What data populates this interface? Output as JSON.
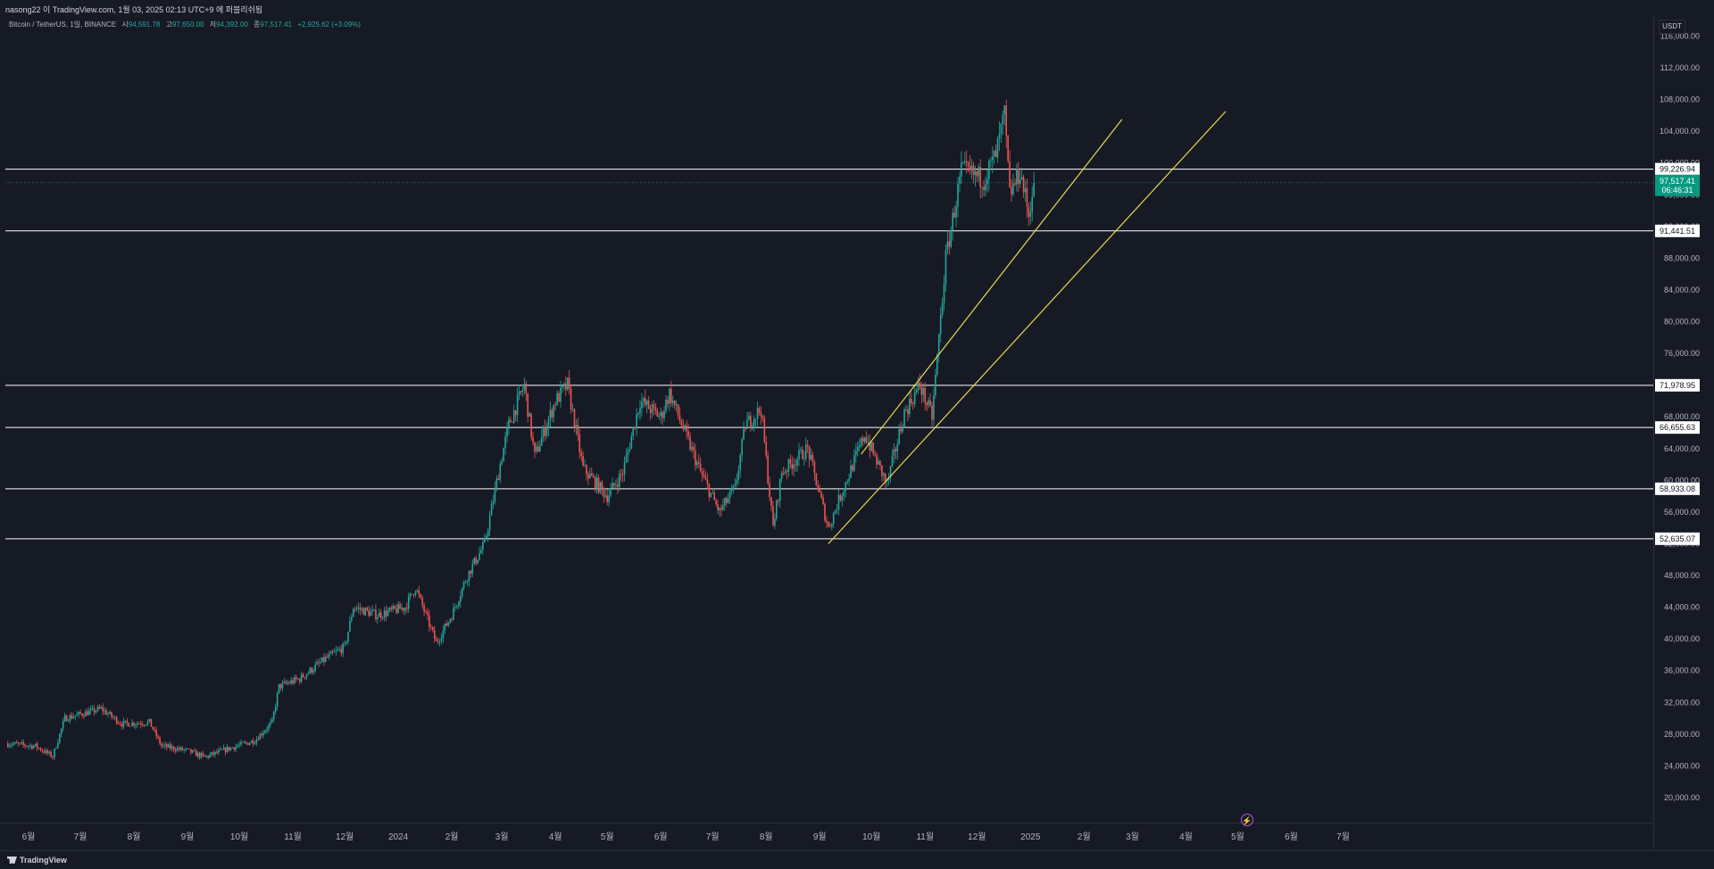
{
  "header": {
    "title": "nasong22 이 TradingView.com, 1월 03, 2025 02:13 UTC+9 에 퍼블리쉬됨"
  },
  "legend": {
    "symbol": "Bitcoin / TetherUS, 1일, BINANCE",
    "open_label": "시",
    "open": "94,591.78",
    "high_label": "고",
    "high": "97,650.00",
    "low_label": "저",
    "low": "94,392.00",
    "close_label": "종",
    "close": "97,517.41",
    "change": "+2,925.62 (+3.09%)"
  },
  "currency": "USDT",
  "footer": {
    "brand": "TradingView"
  },
  "colors": {
    "background": "#161a25",
    "up": "#26a69a",
    "down": "#ef5350",
    "trendline": "#e8d84a",
    "level": "#ffffff",
    "price_tag": "#089981"
  },
  "chart_data": {
    "type": "candlestick",
    "title": "Bitcoin / TetherUS, 1일, BINANCE",
    "y_unit": "USDT",
    "ylim": [
      18000,
      116000
    ],
    "x_ticks": [
      "6월",
      "7월",
      "8월",
      "9월",
      "10월",
      "11월",
      "12월",
      "2024",
      "2월",
      "3월",
      "4월",
      "5월",
      "6월",
      "7월",
      "8월",
      "9월",
      "10월",
      "11월",
      "12월",
      "2025",
      "2월",
      "3월",
      "4월",
      "5월",
      "6월",
      "7월"
    ],
    "x_tick_dates": [
      "2023-06-01",
      "2023-07-01",
      "2023-08-01",
      "2023-09-01",
      "2023-10-01",
      "2023-11-01",
      "2023-12-01",
      "2024-01-01",
      "2024-02-01",
      "2024-03-01",
      "2024-04-01",
      "2024-05-01",
      "2024-06-01",
      "2024-07-01",
      "2024-08-01",
      "2024-09-01",
      "2024-10-01",
      "2024-11-01",
      "2024-12-01",
      "2025-01-01",
      "2025-02-01",
      "2025-03-01",
      "2025-04-01",
      "2025-05-01",
      "2025-06-01",
      "2025-07-01"
    ],
    "y_ticks": [
      "116,000.00",
      "112,000.00",
      "108,000.00",
      "104,000.00",
      "100,000.00",
      "96,000.00",
      "92,000.00",
      "88,000.00",
      "84,000.00",
      "80,000.00",
      "76,000.00",
      "72,000.00",
      "68,000.00",
      "64,000.00",
      "60,000.00",
      "56,000.00",
      "52,000.00",
      "48,000.00",
      "44,000.00",
      "40,000.00",
      "36,000.00",
      "32,000.00",
      "28,000.00",
      "24,000.00",
      "20,000.00"
    ],
    "y_tick_values": [
      116000,
      112000,
      108000,
      104000,
      100000,
      96000,
      92000,
      88000,
      84000,
      80000,
      76000,
      72000,
      68000,
      64000,
      60000,
      56000,
      52000,
      48000,
      44000,
      40000,
      36000,
      32000,
      28000,
      24000,
      20000
    ],
    "price_path": [
      [
        "2023-05-20",
        26800
      ],
      [
        "2023-06-05",
        26500
      ],
      [
        "2023-06-15",
        25200
      ],
      [
        "2023-06-22",
        30000
      ],
      [
        "2023-07-01",
        30500
      ],
      [
        "2023-07-13",
        31200
      ],
      [
        "2023-07-25",
        29300
      ],
      [
        "2023-08-10",
        29500
      ],
      [
        "2023-08-17",
        26500
      ],
      [
        "2023-09-01",
        25900
      ],
      [
        "2023-09-11",
        25100
      ],
      [
        "2023-09-25",
        26200
      ],
      [
        "2023-10-10",
        27200
      ],
      [
        "2023-10-20",
        29500
      ],
      [
        "2023-10-24",
        34000
      ],
      [
        "2023-11-05",
        35000
      ],
      [
        "2023-11-20",
        37500
      ],
      [
        "2023-12-01",
        39000
      ],
      [
        "2023-12-06",
        44000
      ],
      [
        "2023-12-20",
        43000
      ],
      [
        "2024-01-05",
        44000
      ],
      [
        "2024-01-11",
        46500
      ],
      [
        "2024-01-23",
        39500
      ],
      [
        "2024-02-01",
        43000
      ],
      [
        "2024-02-10",
        48000
      ],
      [
        "2024-02-20",
        52000
      ],
      [
        "2024-02-29",
        62000
      ],
      [
        "2024-03-05",
        67000
      ],
      [
        "2024-03-14",
        72000
      ],
      [
        "2024-03-20",
        63000
      ],
      [
        "2024-04-01",
        70000
      ],
      [
        "2024-04-08",
        72000
      ],
      [
        "2024-04-17",
        61500
      ],
      [
        "2024-05-01",
        58000
      ],
      [
        "2024-05-10",
        61000
      ],
      [
        "2024-05-20",
        70000
      ],
      [
        "2024-06-01",
        68000
      ],
      [
        "2024-06-06",
        71000
      ],
      [
        "2024-06-24",
        61000
      ],
      [
        "2024-07-05",
        56000
      ],
      [
        "2024-07-14",
        59000
      ],
      [
        "2024-07-20",
        67000
      ],
      [
        "2024-07-29",
        69000
      ],
      [
        "2024-08-05",
        54000
      ],
      [
        "2024-08-10",
        61000
      ],
      [
        "2024-08-25",
        64000
      ],
      [
        "2024-09-06",
        54000
      ],
      [
        "2024-09-13",
        58000
      ],
      [
        "2024-09-27",
        65800
      ],
      [
        "2024-10-10",
        59500
      ],
      [
        "2024-10-20",
        68500
      ],
      [
        "2024-10-29",
        72000
      ],
      [
        "2024-11-05",
        68000
      ],
      [
        "2024-11-13",
        88000
      ],
      [
        "2024-11-22",
        99000
      ],
      [
        "2024-12-05",
        98000
      ],
      [
        "2024-12-12",
        101000
      ],
      [
        "2024-12-17",
        106000
      ],
      [
        "2024-12-20",
        96000
      ],
      [
        "2024-12-26",
        99000
      ],
      [
        "2024-12-31",
        93500
      ],
      [
        "2025-01-03",
        97517
      ]
    ],
    "horizontal_levels": [
      99226.94,
      91441.51,
      71978.95,
      66655.63,
      58933.08,
      52635.07
    ],
    "horizontal_level_labels": [
      "99,226.94",
      "91,441.51",
      "71,978.95",
      "66,655.63",
      "58,933.08",
      "52,635.07"
    ],
    "trendlines": [
      {
        "start": [
          "2024-09-25",
          63300
        ],
        "end": [
          "2025-02-23",
          105500
        ]
      },
      {
        "start": [
          "2024-09-06",
          52000
        ],
        "end": [
          "2025-04-24",
          106500
        ]
      }
    ],
    "last_price": {
      "value": 97517.41,
      "label": "97,517.41",
      "countdown": "06:46:31"
    },
    "grid": false
  }
}
